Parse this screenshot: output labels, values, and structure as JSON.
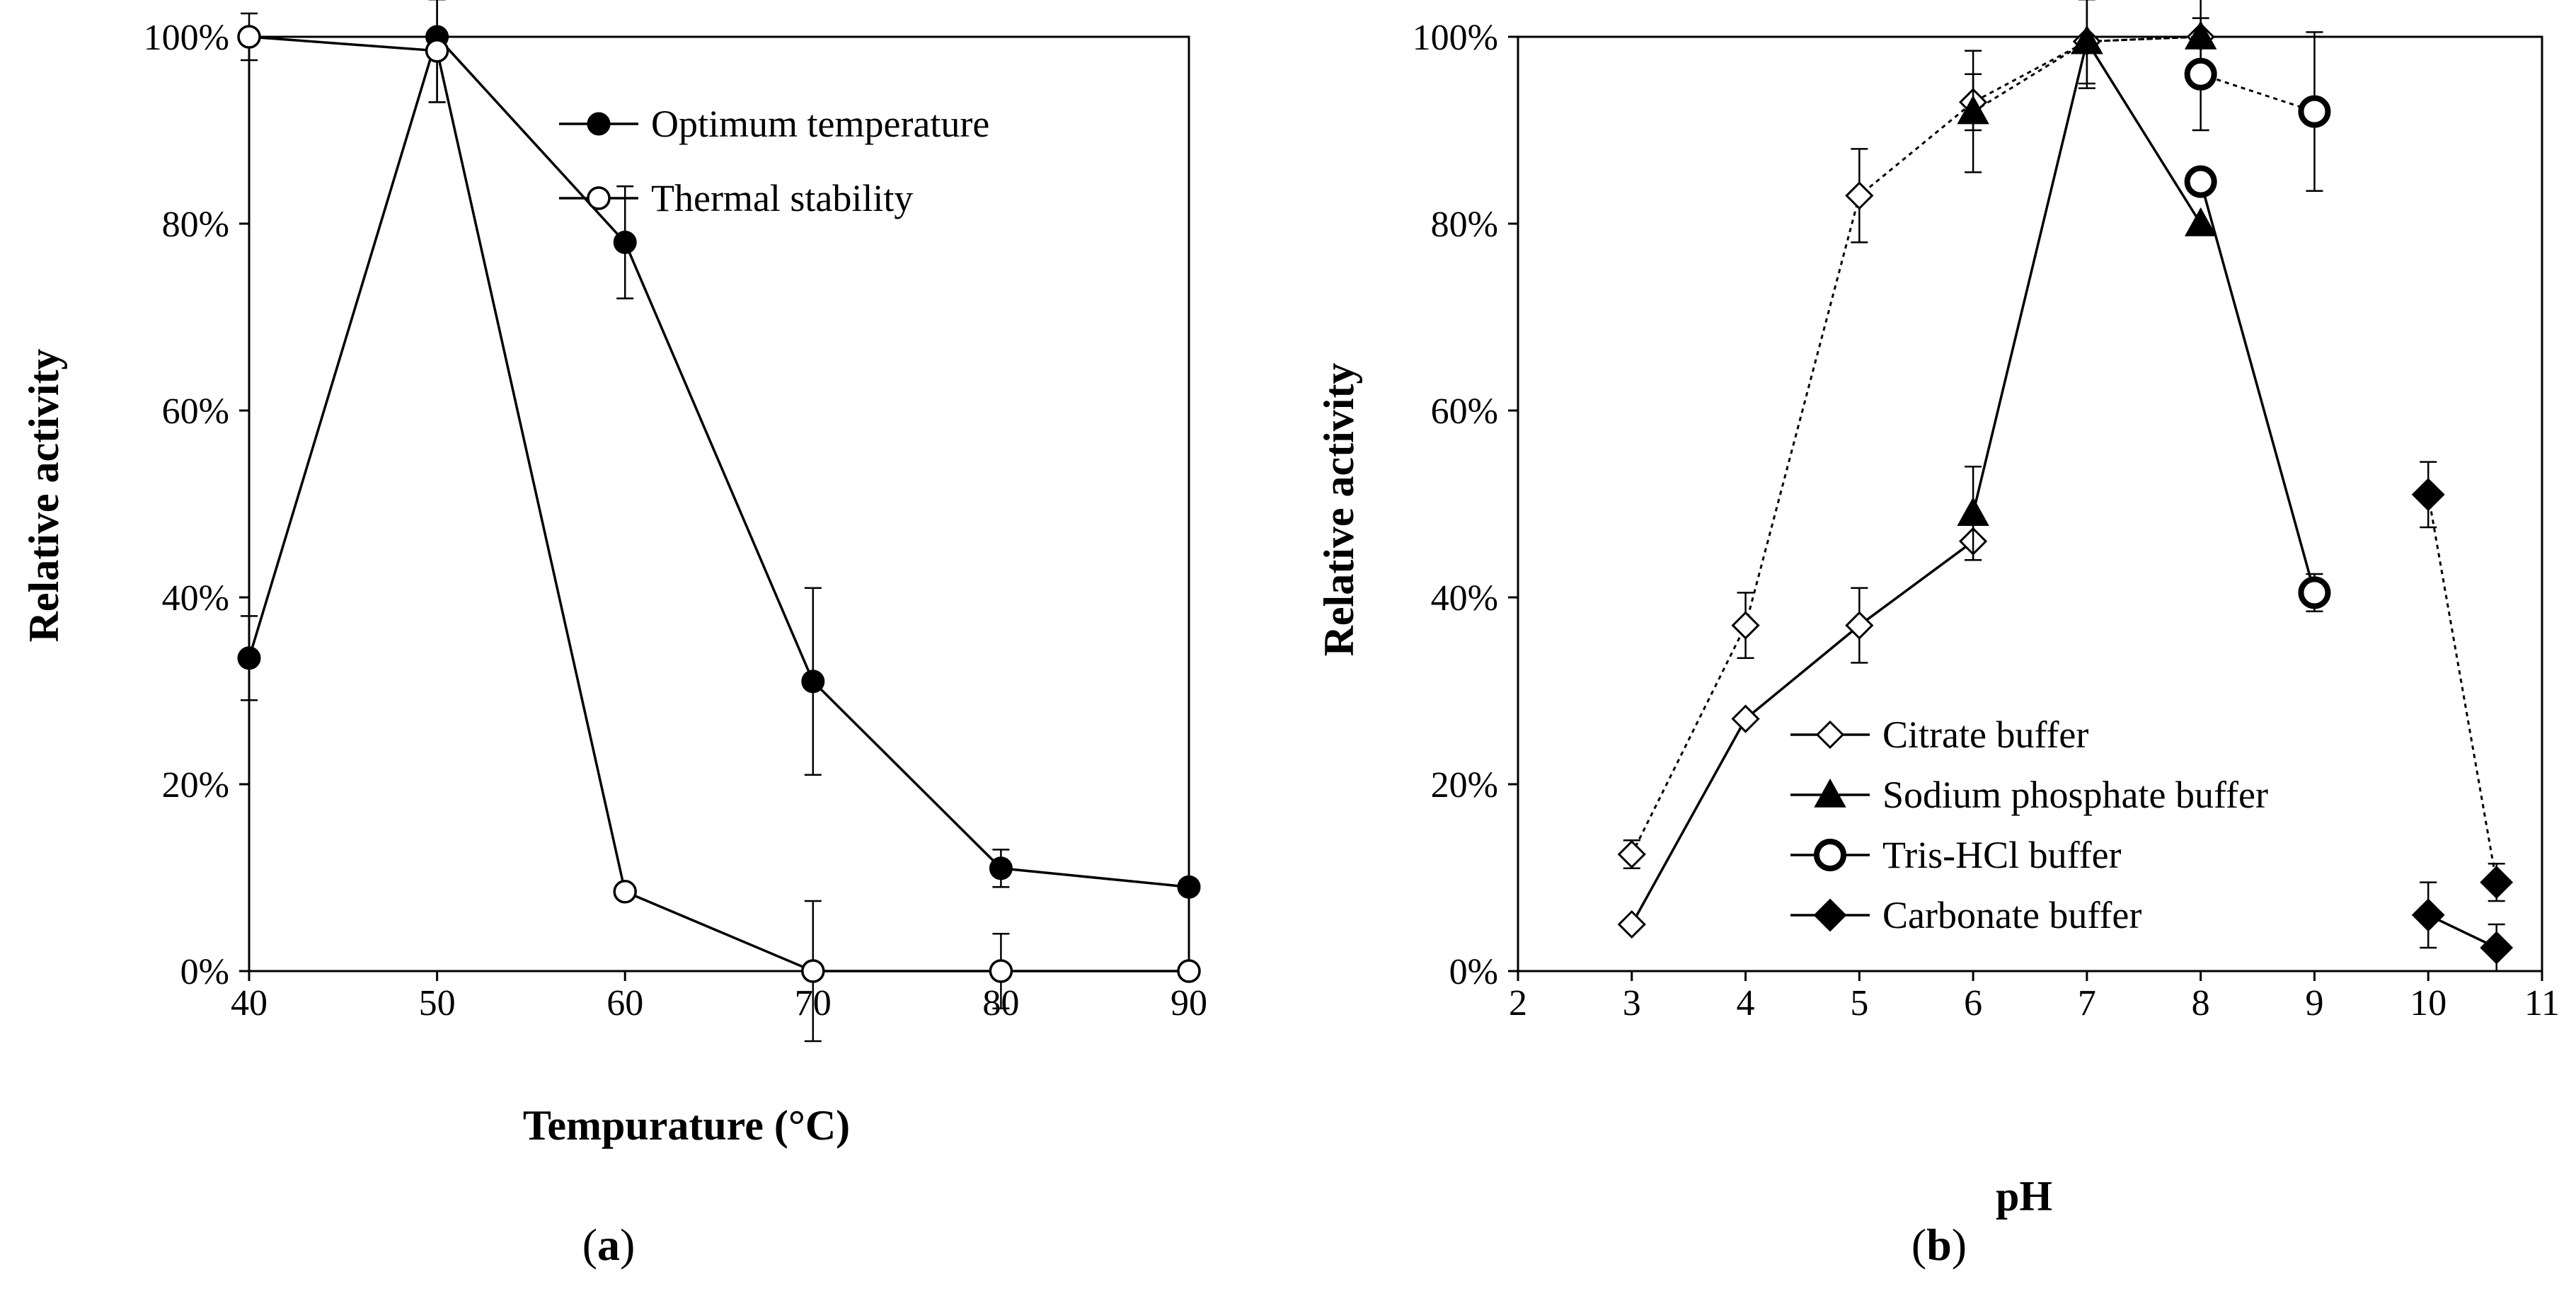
{
  "chart_data": [
    {
      "id": "a",
      "type": "line",
      "panel_label_open": "(",
      "panel_label_letter": "a",
      "panel_label_close": ")",
      "xlabel": "Tempurature  (°C)",
      "ylabel": "Relative activity",
      "xlim": [
        40,
        90
      ],
      "ylim": [
        0,
        100
      ],
      "xticks": [
        40,
        50,
        60,
        70,
        80,
        90
      ],
      "yticks": [
        0,
        20,
        40,
        60,
        80,
        100
      ],
      "y_format": "percent",
      "legend_position": "top-right",
      "series": [
        {
          "name": "Optimum temperature",
          "marker": "circle-filled",
          "line": "solid",
          "points": [
            {
              "x": 40,
              "y": 33.5,
              "err": 4.5
            },
            {
              "x": 50,
              "y": 100,
              "err": 7
            },
            {
              "x": 60,
              "y": 78,
              "err": 6
            },
            {
              "x": 70,
              "y": 31,
              "err": 10
            },
            {
              "x": 80,
              "y": 11,
              "err": 2
            },
            {
              "x": 90,
              "y": 9,
              "err": 0
            }
          ]
        },
        {
          "name": "Thermal stability",
          "marker": "circle-open",
          "line": "solid",
          "points": [
            {
              "x": 40,
              "y": 100,
              "err": 2.5
            },
            {
              "x": 50,
              "y": 98.5,
              "err": 5.5
            },
            {
              "x": 60,
              "y": 8.5,
              "err": 0
            },
            {
              "x": 70,
              "y": 0,
              "err": 7.5
            },
            {
              "x": 80,
              "y": 0,
              "err": 4
            },
            {
              "x": 90,
              "y": 0,
              "err": 0
            }
          ]
        }
      ]
    },
    {
      "id": "b",
      "type": "line",
      "panel_label_open": "(",
      "panel_label_letter": "b",
      "panel_label_close": ")",
      "xlabel": "pH",
      "ylabel": "Relative activity",
      "xlim": [
        2,
        11
      ],
      "ylim": [
        0,
        100
      ],
      "xticks": [
        2,
        3,
        4,
        5,
        6,
        7,
        8,
        9,
        10,
        11
      ],
      "yticks": [
        0,
        20,
        40,
        60,
        80,
        100
      ],
      "y_format": "percent",
      "legend_position": "bottom-right",
      "series": [
        {
          "name": "Citrate buffer",
          "marker": "diamond-open",
          "line": "solid",
          "legend": true,
          "points": [
            {
              "x": 3,
              "y": 5,
              "err": 0
            },
            {
              "x": 4,
              "y": 27,
              "err": 0
            },
            {
              "x": 5,
              "y": 37,
              "err": 4
            },
            {
              "x": 6,
              "y": 46,
              "err": 2
            }
          ]
        },
        {
          "name": "Citrate buffer (dotted)",
          "marker": "diamond-open",
          "line": "dotted",
          "legend": false,
          "points": [
            {
              "x": 3,
              "y": 12.5,
              "err": 1.5
            },
            {
              "x": 4,
              "y": 37,
              "err": 3.5
            },
            {
              "x": 5,
              "y": 83,
              "err": 5
            },
            {
              "x": 6,
              "y": 93,
              "err": 3
            },
            {
              "x": 7,
              "y": 99.5,
              "err": 5
            },
            {
              "x": 8,
              "y": 100,
              "err": 0
            }
          ]
        },
        {
          "name": "Sodium phosphate buffer",
          "marker": "triangle-filled",
          "line": "solid",
          "legend": true,
          "points": [
            {
              "x": 6,
              "y": 49,
              "err": 5
            },
            {
              "x": 7,
              "y": 99.5,
              "err": 4.5
            },
            {
              "x": 8,
              "y": 80,
              "err": 0
            }
          ]
        },
        {
          "name": "Sodium phosphate buffer (dotted)",
          "marker": "triangle-filled",
          "line": "dotted",
          "legend": false,
          "points": [
            {
              "x": 6,
              "y": 92,
              "err": 6.5
            },
            {
              "x": 7,
              "y": 99.5,
              "err": 0
            },
            {
              "x": 8,
              "y": 100,
              "err": 5
            }
          ]
        },
        {
          "name": "Tris-HCl buffer",
          "marker": "circle-open-large",
          "line": "solid",
          "legend": true,
          "points": [
            {
              "x": 8,
              "y": 84.5,
              "err": 0
            },
            {
              "x": 9,
              "y": 40.5,
              "err": 2
            }
          ]
        },
        {
          "name": "Tris-HCl buffer (dotted)",
          "marker": "circle-open-large",
          "line": "dotted",
          "legend": false,
          "points": [
            {
              "x": 8,
              "y": 96,
              "err": 6
            },
            {
              "x": 9,
              "y": 92,
              "err": 8.5
            }
          ]
        },
        {
          "name": "Carbonate buffer",
          "marker": "diamond-filled",
          "line": "solid",
          "legend": true,
          "points": [
            {
              "x": 10,
              "y": 6,
              "err": 3.5
            },
            {
              "x": 10.6,
              "y": 2.5,
              "err": 2.5
            }
          ]
        },
        {
          "name": "Carbonate buffer (dotted)",
          "marker": "diamond-filled",
          "line": "dotted",
          "legend": false,
          "points": [
            {
              "x": 10,
              "y": 51,
              "err": 3.5
            },
            {
              "x": 10.6,
              "y": 9.5,
              "err": 2
            }
          ]
        }
      ]
    }
  ]
}
